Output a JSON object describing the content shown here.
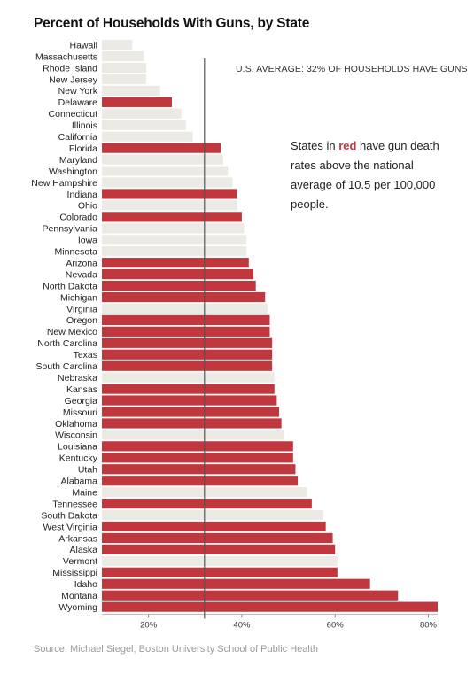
{
  "title": "Percent of Households With Guns, by State",
  "source": "Source: Michael Siegel, Boston University School of Public Health",
  "average_label": "U.S. AVERAGE: 32% OF HOUSEHOLDS HAVE GUNS",
  "note": {
    "before": "States in ",
    "highlight": "red",
    "after": " have gun death rates above the national average of 10.5 per 100,000 people."
  },
  "colors": {
    "above_average": "#c0383d",
    "below_average": "#eceae4",
    "average_line": "#555555"
  },
  "chart_data": {
    "type": "bar",
    "orientation": "horizontal",
    "title": "Percent of Households With Guns, by State",
    "xlim": [
      10,
      82
    ],
    "ticks": [
      20,
      40,
      60,
      80
    ],
    "tick_labels": [
      "20%",
      "40%",
      "60%",
      "80%"
    ],
    "average": 32,
    "categories": [
      "Hawaii",
      "Massachusetts",
      "Rhode Island",
      "New Jersey",
      "New York",
      "Delaware",
      "Connecticut",
      "Illinois",
      "California",
      "Florida",
      "Maryland",
      "Washington",
      "New Hampshire",
      "Indiana",
      "Ohio",
      "Colorado",
      "Pennsylvania",
      "Iowa",
      "Minnesota",
      "Arizona",
      "Nevada",
      "North Dakota",
      "Michigan",
      "Virginia",
      "Oregon",
      "New Mexico",
      "North Carolina",
      "Texas",
      "South Carolina",
      "Nebraska",
      "Kansas",
      "Georgia",
      "Missouri",
      "Oklahoma",
      "Wisconsin",
      "Louisiana",
      "Kentucky",
      "Utah",
      "Alabama",
      "Maine",
      "Tennessee",
      "South Dakota",
      "West Virginia",
      "Arkansas",
      "Alaska",
      "Vermont",
      "Mississippi",
      "Idaho",
      "Montana",
      "Wyoming"
    ],
    "values": [
      16.5,
      19,
      19.5,
      19.5,
      22.5,
      25,
      27,
      28,
      29.5,
      35.5,
      36,
      37,
      38,
      39,
      39,
      40,
      40.5,
      41,
      41,
      41.5,
      42.5,
      43,
      45,
      45.5,
      46,
      46,
      46.5,
      46.5,
      46.5,
      47,
      47,
      47.5,
      48,
      48.5,
      49,
      51,
      51,
      51.5,
      52,
      54,
      55,
      57.5,
      58,
      59.5,
      60,
      60.5,
      60.5,
      67.5,
      73.5,
      82
    ],
    "above_average_death_rate": [
      false,
      false,
      false,
      false,
      false,
      true,
      false,
      false,
      false,
      true,
      false,
      false,
      false,
      true,
      false,
      true,
      false,
      false,
      false,
      true,
      true,
      true,
      true,
      false,
      true,
      true,
      true,
      true,
      true,
      false,
      true,
      true,
      true,
      true,
      false,
      true,
      true,
      true,
      true,
      false,
      true,
      false,
      true,
      true,
      true,
      false,
      true,
      true,
      true,
      true
    ]
  }
}
